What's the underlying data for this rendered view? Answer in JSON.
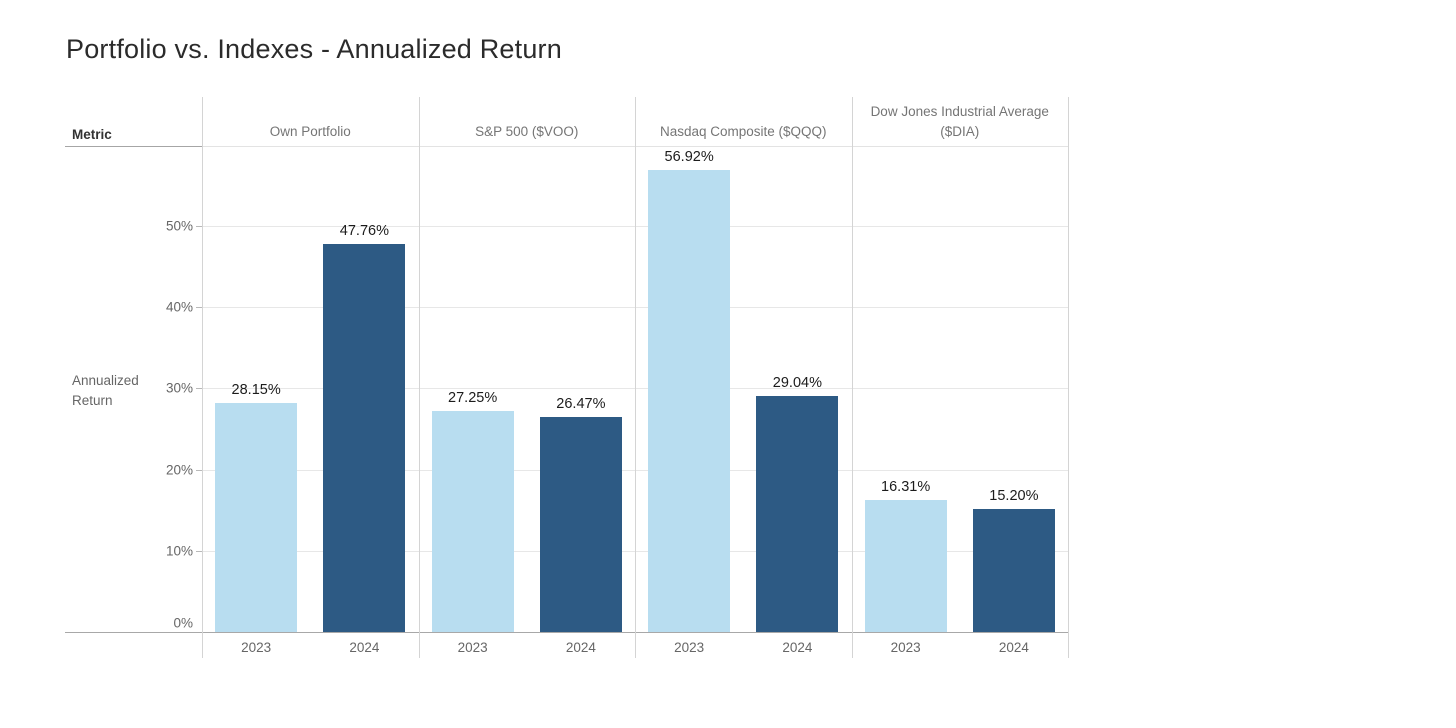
{
  "title": "Portfolio vs. Indexes - Annualized Return",
  "table": {
    "metric_header_label": "Metric",
    "row_label_lines": [
      "Annualized",
      "Return"
    ]
  },
  "axis": {
    "tick_values": [
      0,
      10,
      20,
      30,
      40,
      50
    ],
    "tick_labels": [
      "0%",
      "10%",
      "20%",
      "30%",
      "40%",
      "50%"
    ]
  },
  "colors": {
    "bar_2023": "#b8ddf0",
    "bar_2024": "#2d5a84",
    "gridline": "#e7e7e7",
    "divider": "#d4d4d4",
    "axis_line": "#a8a8a8",
    "metric_underline": "#a6a6a6",
    "header_separator": "#e3e3e3"
  },
  "chart_data": {
    "type": "bar",
    "title": "Portfolio vs. Indexes - Annualized Return",
    "xlabel": "Metric",
    "ylabel": "Annualized Return",
    "ylim": [
      0,
      59
    ],
    "grid": true,
    "legend_position": "none",
    "categories": [
      "Own Portfolio",
      "S&P 500 ($VOO)",
      "Nasdaq Composite ($QQQ)",
      "Dow Jones Industrial Average ($DIA)"
    ],
    "x_group_labels": [
      "2023",
      "2024"
    ],
    "series": [
      {
        "name": "2023",
        "color": "#b8ddf0",
        "values": [
          28.15,
          27.25,
          56.92,
          16.31
        ],
        "labels": [
          "28.15%",
          "27.25%",
          "56.92%",
          "16.31%"
        ]
      },
      {
        "name": "2024",
        "color": "#2d5a84",
        "values": [
          47.76,
          26.47,
          29.04,
          15.2
        ],
        "labels": [
          "47.76%",
          "26.47%",
          "29.04%",
          "15.20%"
        ]
      }
    ]
  }
}
